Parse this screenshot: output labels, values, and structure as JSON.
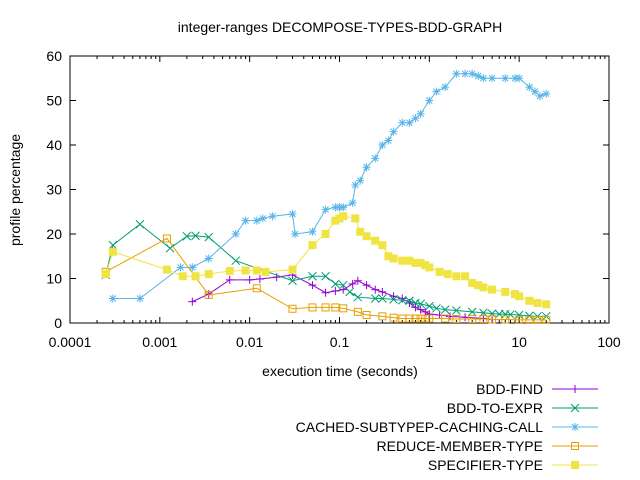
{
  "chart_data": {
    "type": "line",
    "title": "integer-ranges DECOMPOSE-TYPES-BDD-GRAPH",
    "xlabel": "execution time (seconds)",
    "ylabel": "profile percentage",
    "xscale": "log",
    "xlim": [
      0.0001,
      100
    ],
    "ylim": [
      0,
      60
    ],
    "xticks": [
      {
        "v": 0.0001,
        "label": "0.0001"
      },
      {
        "v": 0.001,
        "label": "0.001"
      },
      {
        "v": 0.01,
        "label": "0.01"
      },
      {
        "v": 0.1,
        "label": "0.1"
      },
      {
        "v": 1,
        "label": "1"
      },
      {
        "v": 10,
        "label": "10"
      },
      {
        "v": 100,
        "label": "100"
      }
    ],
    "yticks": [
      {
        "v": 0,
        "label": "0"
      },
      {
        "v": 10,
        "label": "10"
      },
      {
        "v": 20,
        "label": "20"
      },
      {
        "v": 30,
        "label": "30"
      },
      {
        "v": 40,
        "label": "40"
      },
      {
        "v": 50,
        "label": "50"
      },
      {
        "v": 60,
        "label": "60"
      }
    ],
    "legend_position": "below-right",
    "series": [
      {
        "name": "BDD-FIND",
        "color": "#9400d3",
        "marker": "plus",
        "points": [
          [
            0.0023,
            4.8
          ],
          [
            0.0035,
            6.5
          ],
          [
            0.006,
            9.7
          ],
          [
            0.01,
            9.7
          ],
          [
            0.013,
            9.9
          ],
          [
            0.02,
            10.3
          ],
          [
            0.03,
            10.8
          ],
          [
            0.05,
            8.5
          ],
          [
            0.07,
            6.8
          ],
          [
            0.09,
            7.2
          ],
          [
            0.11,
            7.5
          ],
          [
            0.14,
            8.8
          ],
          [
            0.16,
            9.5
          ],
          [
            0.2,
            8.5
          ],
          [
            0.25,
            7.5
          ],
          [
            0.3,
            7
          ],
          [
            0.4,
            6
          ],
          [
            0.5,
            5.5
          ],
          [
            0.6,
            4.5
          ],
          [
            0.7,
            3.5
          ],
          [
            0.8,
            3
          ],
          [
            0.9,
            2.5
          ],
          [
            1,
            2
          ],
          [
            1.3,
            1.8
          ],
          [
            1.7,
            1.5
          ],
          [
            2.5,
            1.3
          ],
          [
            4,
            1
          ],
          [
            5,
            0.8
          ]
        ]
      },
      {
        "name": "BDD-TO-EXPR",
        "color": "#009e73",
        "marker": "cross",
        "points": [
          [
            0.00025,
            10.8
          ],
          [
            0.0003,
            17.5
          ],
          [
            0.0006,
            22.2
          ],
          [
            0.0013,
            16.8
          ],
          [
            0.002,
            19.5
          ],
          [
            0.0025,
            19.6
          ],
          [
            0.0035,
            19.3
          ],
          [
            0.007,
            14
          ],
          [
            0.03,
            9.5
          ],
          [
            0.05,
            10.5
          ],
          [
            0.07,
            10.5
          ],
          [
            0.09,
            8.8
          ],
          [
            0.11,
            8.5
          ],
          [
            0.13,
            7
          ],
          [
            0.16,
            5.8
          ],
          [
            0.25,
            5.5
          ],
          [
            0.3,
            5.5
          ],
          [
            0.4,
            5.3
          ],
          [
            0.5,
            5.1
          ],
          [
            0.6,
            5
          ],
          [
            0.7,
            4.5
          ],
          [
            0.8,
            4.3
          ],
          [
            1,
            3.8
          ],
          [
            1.2,
            3.3
          ],
          [
            1.5,
            3
          ],
          [
            2,
            2.8
          ],
          [
            3,
            2.5
          ],
          [
            4,
            2.3
          ],
          [
            5,
            2.1
          ],
          [
            6,
            2
          ],
          [
            7,
            2
          ],
          [
            8,
            1.9
          ],
          [
            10,
            1.8
          ],
          [
            13,
            1.6
          ],
          [
            16,
            1.5
          ],
          [
            20,
            1.5
          ]
        ]
      },
      {
        "name": "CACHED-SUBTYPEP-CACHING-CALL",
        "color": "#56b4e9",
        "marker": "star",
        "points": [
          [
            0.0003,
            5.5
          ],
          [
            0.0006,
            5.5
          ],
          [
            0.0017,
            12.5
          ],
          [
            0.0023,
            12.5
          ],
          [
            0.0035,
            14.5
          ],
          [
            0.007,
            20
          ],
          [
            0.009,
            23
          ],
          [
            0.012,
            23
          ],
          [
            0.014,
            23.5
          ],
          [
            0.018,
            24
          ],
          [
            0.03,
            24.5
          ],
          [
            0.032,
            20
          ],
          [
            0.05,
            20.5
          ],
          [
            0.07,
            25.5
          ],
          [
            0.09,
            26
          ],
          [
            0.1,
            26
          ],
          [
            0.11,
            26
          ],
          [
            0.14,
            27
          ],
          [
            0.15,
            31
          ],
          [
            0.17,
            32
          ],
          [
            0.2,
            35
          ],
          [
            0.25,
            37
          ],
          [
            0.3,
            40
          ],
          [
            0.35,
            41
          ],
          [
            0.4,
            43
          ],
          [
            0.5,
            45
          ],
          [
            0.6,
            45
          ],
          [
            0.7,
            46
          ],
          [
            0.8,
            47
          ],
          [
            1,
            50
          ],
          [
            1.2,
            52
          ],
          [
            1.5,
            53
          ],
          [
            2,
            56
          ],
          [
            2.5,
            56
          ],
          [
            3,
            56
          ],
          [
            3.5,
            55.5
          ],
          [
            4,
            55
          ],
          [
            5,
            55
          ],
          [
            7,
            55
          ],
          [
            9,
            55
          ],
          [
            10,
            55
          ],
          [
            13,
            53
          ],
          [
            15,
            52
          ],
          [
            17,
            51
          ],
          [
            20,
            51.5
          ]
        ]
      },
      {
        "name": "REDUCE-MEMBER-TYPE",
        "color": "#e69f00",
        "marker": "square-open",
        "points": [
          [
            0.00025,
            11.5
          ],
          [
            0.0012,
            19
          ],
          [
            0.0035,
            6.3
          ],
          [
            0.012,
            7.8
          ],
          [
            0.03,
            3.2
          ],
          [
            0.05,
            3.5
          ],
          [
            0.07,
            3.5
          ],
          [
            0.09,
            3.5
          ],
          [
            0.11,
            3.3
          ],
          [
            0.16,
            2.5
          ],
          [
            0.2,
            1.8
          ],
          [
            0.3,
            1.5
          ],
          [
            0.4,
            1.2
          ],
          [
            0.5,
            1
          ],
          [
            0.6,
            1
          ],
          [
            0.7,
            1
          ],
          [
            0.8,
            1
          ],
          [
            0.9,
            1
          ],
          [
            1,
            1
          ],
          [
            1.5,
            1
          ],
          [
            2,
            0.9
          ],
          [
            3,
            0.9
          ],
          [
            4,
            0.9
          ],
          [
            5,
            0.8
          ],
          [
            7,
            0.8
          ],
          [
            10,
            0.7
          ],
          [
            13,
            0.7
          ],
          [
            16,
            0.7
          ],
          [
            20,
            0.7
          ]
        ]
      },
      {
        "name": "SPECIFIER-TYPE",
        "color": "#f0e442",
        "marker": "square-filled",
        "points": [
          [
            0.00025,
            11
          ],
          [
            0.0003,
            16
          ],
          [
            0.0012,
            12
          ],
          [
            0.0018,
            10.5
          ],
          [
            0.0025,
            10.5
          ],
          [
            0.0035,
            11
          ],
          [
            0.006,
            11.7
          ],
          [
            0.009,
            11.8
          ],
          [
            0.012,
            11.8
          ],
          [
            0.015,
            11.5
          ],
          [
            0.03,
            12
          ],
          [
            0.05,
            17.5
          ],
          [
            0.07,
            20
          ],
          [
            0.09,
            23
          ],
          [
            0.1,
            23.5
          ],
          [
            0.11,
            24
          ],
          [
            0.15,
            23.5
          ],
          [
            0.17,
            20.5
          ],
          [
            0.2,
            19.5
          ],
          [
            0.25,
            18.5
          ],
          [
            0.3,
            17.5
          ],
          [
            0.35,
            15
          ],
          [
            0.4,
            14.5
          ],
          [
            0.5,
            14
          ],
          [
            0.6,
            14
          ],
          [
            0.7,
            13.5
          ],
          [
            0.8,
            13.5
          ],
          [
            0.9,
            13
          ],
          [
            1,
            12.5
          ],
          [
            1.3,
            11.5
          ],
          [
            1.6,
            11
          ],
          [
            2,
            10.5
          ],
          [
            2.5,
            10.5
          ],
          [
            3,
            9
          ],
          [
            3.5,
            8.5
          ],
          [
            4,
            8
          ],
          [
            5,
            7.5
          ],
          [
            7,
            7
          ],
          [
            9,
            6.5
          ],
          [
            10,
            6
          ],
          [
            13,
            5
          ],
          [
            16,
            4.5
          ],
          [
            20,
            4.2
          ]
        ]
      }
    ]
  }
}
